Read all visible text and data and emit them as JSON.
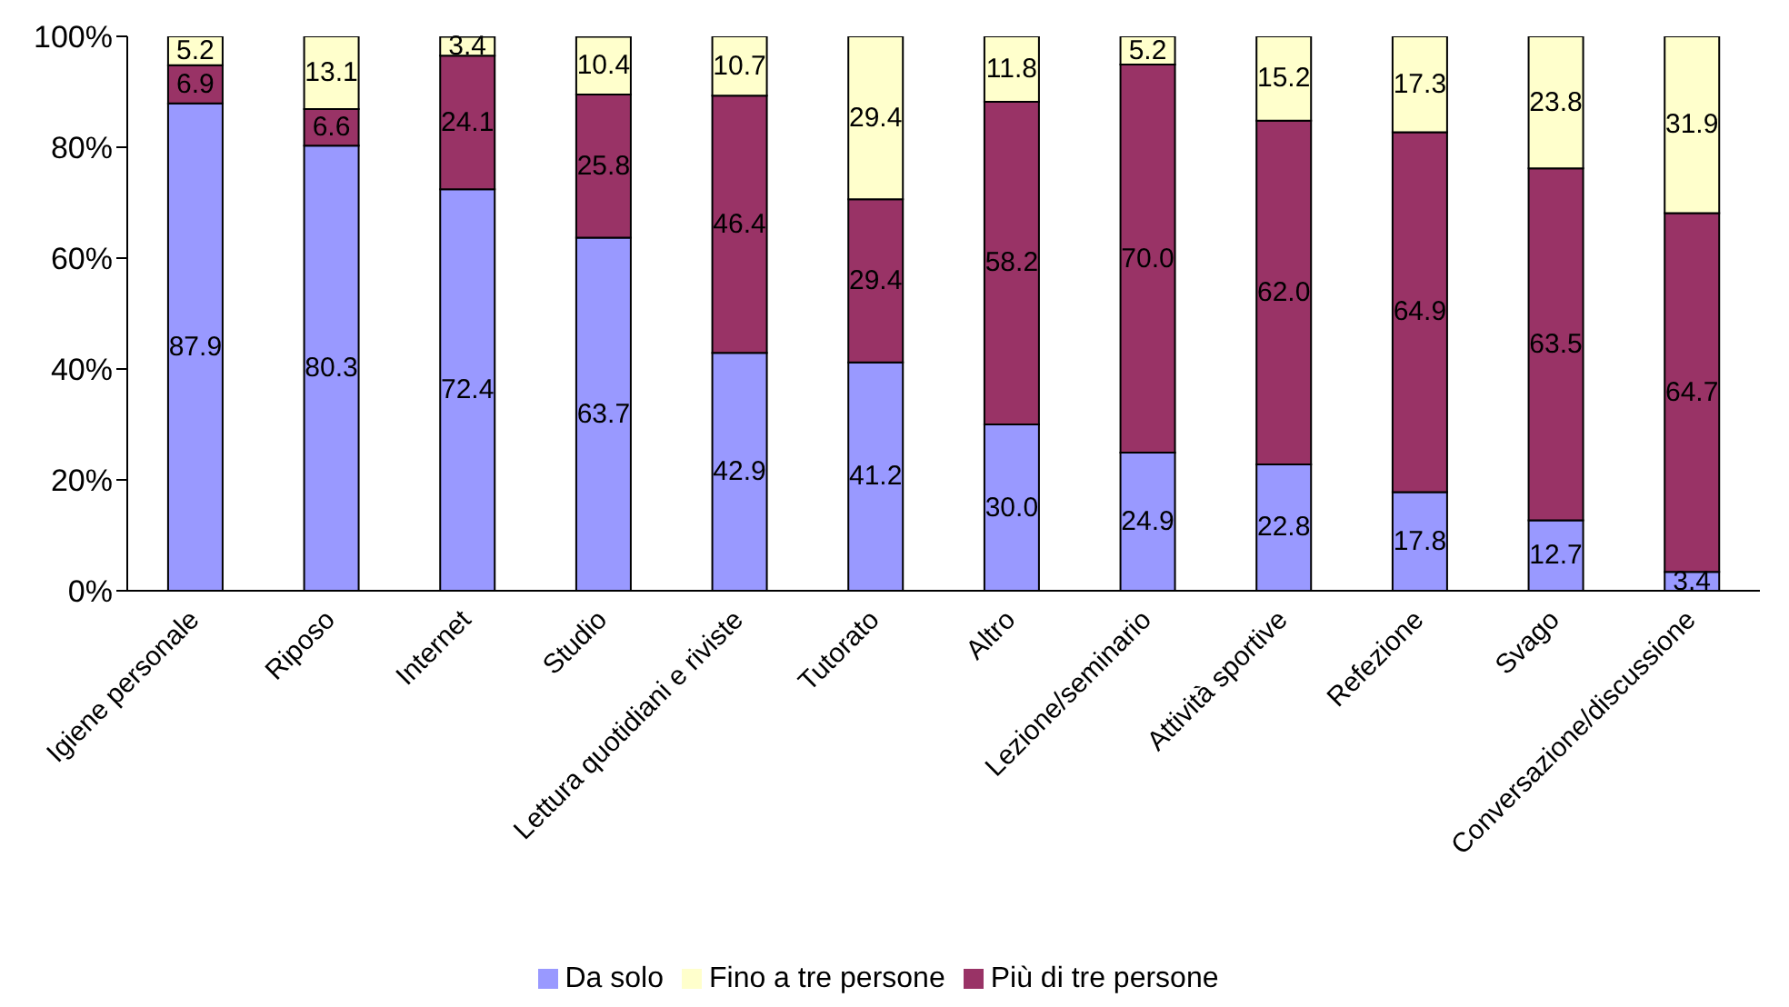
{
  "chart_data": {
    "type": "bar",
    "stacked": true,
    "categories": [
      "Igiene personale",
      "Riposo",
      "Internet",
      "Studio",
      "Lettura quotidiani e riviste",
      "Tutorato",
      "Altro",
      "Lezione/seminario",
      "Attività sportive",
      "Refezione",
      "Svago",
      "Conversazione/discussione"
    ],
    "series": [
      {
        "name": "Da solo",
        "color": "#9999ff",
        "values": [
          87.9,
          80.3,
          72.4,
          63.7,
          42.9,
          41.2,
          30.0,
          24.9,
          22.8,
          17.8,
          12.7,
          3.4
        ],
        "value_labels": [
          "87.9",
          "80.3",
          "72.4",
          "63.7",
          "42.9",
          "41.2",
          "30.0",
          "24.9",
          "22.8",
          "17.8",
          "12.7",
          "3.4"
        ]
      },
      {
        "name": "Più di tre persone",
        "color": "#993366",
        "values": [
          6.9,
          6.6,
          24.1,
          25.8,
          46.4,
          29.4,
          58.2,
          70.0,
          62.0,
          64.9,
          63.5,
          64.7
        ],
        "value_labels": [
          "6.9",
          "6.6",
          "24.1",
          "25.8",
          "46.4",
          "29.4",
          "58.2",
          "70.0",
          "62.0",
          "64.9",
          "63.5",
          "64.7"
        ]
      },
      {
        "name": "Fino a tre persone",
        "color": "#ffffcc",
        "values": [
          5.2,
          13.1,
          3.4,
          10.4,
          10.7,
          29.4,
          11.8,
          5.2,
          15.2,
          17.3,
          23.8,
          31.9
        ],
        "value_labels": [
          "5.2",
          "13.1",
          "3.4",
          "10.4",
          "10.7",
          "29.4",
          "11.8",
          "5.2",
          "15.2",
          "17.3",
          "23.8",
          "31.9"
        ]
      }
    ],
    "ylim": [
      0,
      100
    ],
    "yticks": [
      {
        "value": 0,
        "label": "0%"
      },
      {
        "value": 20,
        "label": "20%"
      },
      {
        "value": 40,
        "label": "40%"
      },
      {
        "value": 60,
        "label": "60%"
      },
      {
        "value": 80,
        "label": "80%"
      },
      {
        "value": 100,
        "label": "100%"
      }
    ],
    "grid": false,
    "legend": "bottom"
  }
}
